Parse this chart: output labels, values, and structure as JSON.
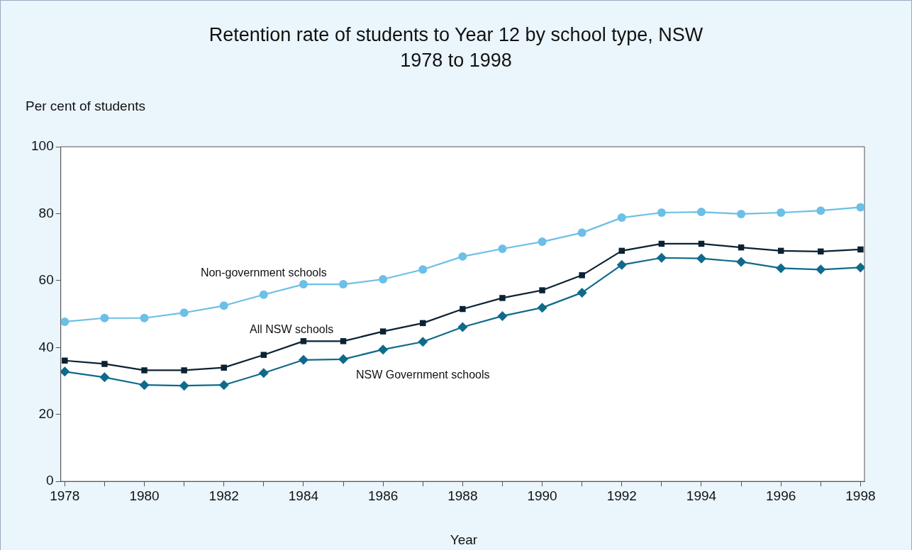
{
  "chart_data": {
    "type": "line",
    "title": "Retention rate of students to Year 12 by school type, NSW 1978 to 1998",
    "ylabel": "Per cent of students",
    "xlabel": "Year",
    "x": [
      1978,
      1979,
      1980,
      1981,
      1982,
      1983,
      1984,
      1985,
      1986,
      1987,
      1988,
      1989,
      1990,
      1991,
      1992,
      1993,
      1994,
      1995,
      1996,
      1997,
      1998
    ],
    "series": [
      {
        "name": "Non-government schools",
        "color": "#6cbfe6",
        "marker": "circle",
        "values": [
          47.7,
          48.8,
          48.8,
          50.4,
          52.5,
          55.8,
          58.9,
          58.9,
          60.4,
          63.3,
          67.2,
          69.5,
          71.6,
          74.3,
          78.8,
          80.3,
          80.5,
          79.9,
          80.3,
          80.9,
          81.9
        ]
      },
      {
        "name": "All NSW schools",
        "color": "#0b2233",
        "marker": "square",
        "values": [
          36.1,
          35.1,
          33.2,
          33.2,
          34.0,
          37.8,
          41.9,
          41.9,
          44.8,
          47.3,
          51.5,
          54.8,
          57.1,
          61.6,
          68.9,
          71.0,
          71.0,
          69.9,
          68.9,
          68.7,
          69.3
        ]
      },
      {
        "name": "NSW Government schools",
        "color": "#0f6a8c",
        "marker": "diamond",
        "values": [
          32.8,
          31.1,
          28.8,
          28.6,
          28.8,
          32.4,
          36.3,
          36.5,
          39.4,
          41.7,
          46.1,
          49.4,
          51.9,
          56.4,
          64.7,
          66.8,
          66.6,
          65.6,
          63.7,
          63.3,
          63.9
        ]
      }
    ],
    "xlim": [
      1977.9,
      1998.1
    ],
    "xticks": [
      1978,
      {
        "value": 1979,
        "label": null
      },
      1980,
      {
        "value": 1981,
        "label": null
      },
      1982,
      {
        "value": 1983,
        "label": null
      },
      1984,
      {
        "value": 1985,
        "label": null
      },
      1986,
      {
        "value": 1987,
        "label": null
      },
      1988,
      {
        "value": 1989,
        "label": null
      },
      1990,
      {
        "value": 1991,
        "label": null
      },
      1992,
      {
        "value": 1993,
        "label": null
      },
      1994,
      {
        "value": 1995,
        "label": null
      },
      1996,
      {
        "value": 1997,
        "label": null
      },
      1998
    ],
    "ylim": [
      0,
      100
    ],
    "yticks": [
      0,
      20,
      40,
      60,
      80,
      100
    ],
    "grid": false,
    "legend": false,
    "line_style": "solid"
  }
}
